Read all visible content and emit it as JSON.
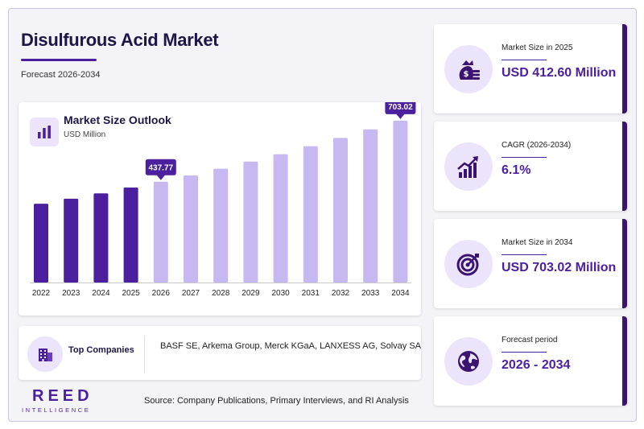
{
  "header": {
    "title": "Disulfurous Acid Market",
    "subtitle": "Forecast 2026-2034"
  },
  "chart": {
    "title": "Market Size Outlook",
    "unit": "USD Million"
  },
  "chart_data": {
    "type": "bar",
    "title": "Market Size Outlook",
    "ylabel": "USD Million",
    "categories": [
      "2022",
      "2023",
      "2024",
      "2025",
      "2026",
      "2027",
      "2028",
      "2029",
      "2030",
      "2031",
      "2032",
      "2033",
      "2034"
    ],
    "values": [
      342,
      364,
      387,
      412.6,
      437.77,
      465,
      494,
      525,
      557,
      592,
      628,
      665,
      703.02
    ],
    "data_labels": [
      {
        "category": "2026",
        "text": "437.77"
      },
      {
        "category": "2034",
        "text": "703.02"
      }
    ],
    "colors": {
      "historical": "#4b1f9e",
      "forecast": "#c8b8f2",
      "label_bg": "#4b1f9e"
    },
    "historical_through": "2025",
    "ylim": [
      0,
      720
    ],
    "grid": false,
    "legend": "none"
  },
  "companies": {
    "label": "Top Companies",
    "list": "BASF SE, Arkema Group, Merck KGaA, LANXESS AG, Solvay SA"
  },
  "logo": {
    "main": "REED",
    "sub": "INTELLIGENCE"
  },
  "source": "Source: Company Publications, Primary Interviews, and RI Analysis",
  "stats": [
    {
      "label": "Market Size in 2025",
      "value": "USD 412.60 Million",
      "icon": "money-bag-icon"
    },
    {
      "label": "CAGR (2026-2034)",
      "value": "6.1%",
      "icon": "growth-chart-icon"
    },
    {
      "label": "Market Size in 2034",
      "value": "USD 703.02 Million",
      "icon": "target-icon"
    },
    {
      "label": "Forecast period",
      "value": "2026 - 2034",
      "icon": "globe-icon"
    }
  ],
  "theme": {
    "accent": "#4b1f9e",
    "accent_dark": "#3a1470",
    "icon_bg": "#ece4fb",
    "title_color": "#1d1646"
  }
}
